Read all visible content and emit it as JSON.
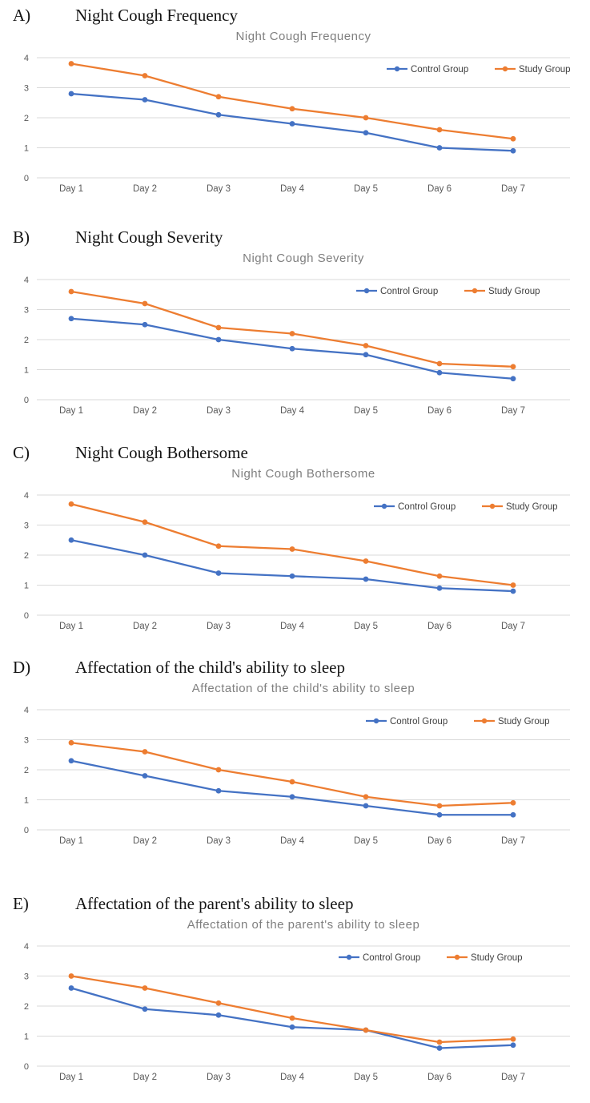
{
  "colors": {
    "control_series": "#4472C4",
    "study_series": "#ED7D31",
    "gridline": "#D9D9D9",
    "axis_tick_label": "#595959",
    "legend_text": "#404040",
    "chart_title": "#7F7F7F",
    "heading_text": "#141414",
    "background": "#FFFFFF"
  },
  "chart_data": [
    {
      "section_label": "A)",
      "section_heading": "Night Cough Frequency",
      "type": "line",
      "title": "Night Cough Frequency",
      "categories": [
        "Day 1",
        "Day 2",
        "Day 3",
        "Day 4",
        "Day 5",
        "Day 6",
        "Day 7"
      ],
      "series": [
        {
          "name": "Control Group",
          "color": "#4472C4",
          "values": [
            2.8,
            2.6,
            2.1,
            1.8,
            1.5,
            1.0,
            0.9
          ]
        },
        {
          "name": "Study Group",
          "color": "#ED7D31",
          "values": [
            3.8,
            3.4,
            2.7,
            2.3,
            2.0,
            1.6,
            1.3
          ]
        }
      ],
      "ylim": [
        0,
        4
      ],
      "yticks": [
        0,
        1,
        2,
        3,
        4
      ],
      "grid": true,
      "legend_position": "top-right",
      "legend_dx": 0
    },
    {
      "section_label": "B)",
      "section_heading": "Night Cough Severity",
      "type": "line",
      "title": "Night Cough Severity",
      "categories": [
        "Day 1",
        "Day 2",
        "Day 3",
        "Day 4",
        "Day 5",
        "Day 6",
        "Day 7"
      ],
      "series": [
        {
          "name": "Control Group",
          "color": "#4472C4",
          "values": [
            2.7,
            2.5,
            2.0,
            1.7,
            1.5,
            0.9,
            0.7
          ]
        },
        {
          "name": "Study Group",
          "color": "#ED7D31",
          "values": [
            3.6,
            3.2,
            2.4,
            2.2,
            1.8,
            1.2,
            1.1
          ]
        }
      ],
      "ylim": [
        0,
        4
      ],
      "yticks": [
        0,
        1,
        2,
        3,
        4
      ],
      "grid": true,
      "legend_position": "top-right",
      "legend_dx": -38
    },
    {
      "section_label": "C)",
      "section_heading": "Night Cough Bothersome",
      "type": "line",
      "title": "Night Cough Bothersome",
      "categories": [
        "Day 1",
        "Day 2",
        "Day 3",
        "Day 4",
        "Day 5",
        "Day 6",
        "Day 7"
      ],
      "series": [
        {
          "name": "Control Group",
          "color": "#4472C4",
          "values": [
            2.5,
            2.0,
            1.4,
            1.3,
            1.2,
            0.9,
            0.8
          ]
        },
        {
          "name": "Study Group",
          "color": "#ED7D31",
          "values": [
            3.7,
            3.1,
            2.3,
            2.2,
            1.8,
            1.3,
            1.0
          ]
        }
      ],
      "ylim": [
        0,
        4
      ],
      "yticks": [
        0,
        1,
        2,
        3,
        4
      ],
      "grid": true,
      "legend_position": "top-right",
      "legend_dx": -16
    },
    {
      "section_label": "D)",
      "section_heading": "Affectation of the child's ability to sleep",
      "type": "line",
      "title": "Affectation of the child's ability to sleep",
      "categories": [
        "Day 1",
        "Day 2",
        "Day 3",
        "Day 4",
        "Day 5",
        "Day 6",
        "Day 7"
      ],
      "series": [
        {
          "name": "Control Group",
          "color": "#4472C4",
          "values": [
            2.3,
            1.8,
            1.3,
            1.1,
            0.8,
            0.5,
            0.5
          ]
        },
        {
          "name": "Study Group",
          "color": "#ED7D31",
          "values": [
            2.9,
            2.6,
            2.0,
            1.6,
            1.1,
            0.8,
            0.9
          ]
        }
      ],
      "ylim": [
        0,
        4
      ],
      "yticks": [
        0,
        1,
        2,
        3,
        4
      ],
      "grid": true,
      "legend_position": "top-right",
      "legend_dx": -26
    },
    {
      "section_label": "E)",
      "section_heading": "Affectation of the parent's ability to sleep",
      "type": "line",
      "title": "Affectation of the parent's ability to sleep",
      "categories": [
        "Day 1",
        "Day 2",
        "Day 3",
        "Day 4",
        "Day 5",
        "Day 6",
        "Day 7"
      ],
      "series": [
        {
          "name": "Control Group",
          "color": "#4472C4",
          "values": [
            2.6,
            1.9,
            1.7,
            1.3,
            1.2,
            0.6,
            0.7
          ]
        },
        {
          "name": "Study Group",
          "color": "#ED7D31",
          "values": [
            3.0,
            2.6,
            2.1,
            1.6,
            1.2,
            0.8,
            0.9
          ]
        }
      ],
      "ylim": [
        0,
        4
      ],
      "yticks": [
        0,
        1,
        2,
        3,
        4
      ],
      "grid": true,
      "legend_position": "top-right",
      "legend_dx": -60
    }
  ]
}
